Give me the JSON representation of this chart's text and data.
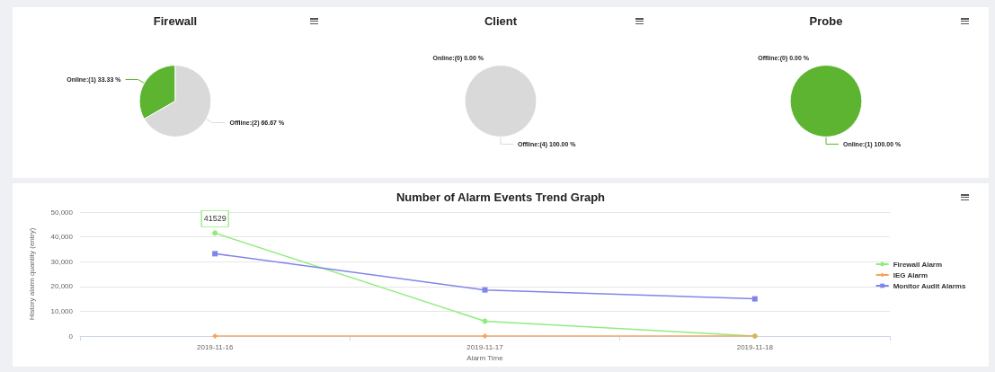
{
  "chart_data": [
    {
      "type": "pie",
      "title": "Firewall",
      "categories": [
        "Online",
        "Offline"
      ],
      "values": [
        33.33,
        66.67
      ],
      "colors": [
        "#5db431",
        "#d9d9d9"
      ],
      "value_labels": [
        ":(1) 33.33 %",
        ":(2) 66.67 %"
      ]
    },
    {
      "type": "pie",
      "title": "Client",
      "categories": [
        "Online",
        "Offline"
      ],
      "values": [
        0,
        100
      ],
      "colors": [
        "#5db431",
        "#d9d9d9"
      ],
      "value_labels": [
        ":(0) 0.00 %",
        ":(4) 100.00 %"
      ]
    },
    {
      "type": "pie",
      "title": "Probe",
      "categories": [
        "Offline",
        "Online"
      ],
      "values": [
        0,
        100
      ],
      "colors": [
        "#d9d9d9",
        "#5db431"
      ],
      "value_labels": [
        ":(0) 0.00 %",
        ":(1) 100.00 %"
      ]
    },
    {
      "type": "line",
      "title": "Number of Alarm Events Trend Graph",
      "xlabel": "Alarm Time",
      "ylabel": "History alarm quantity (entry)",
      "categories": [
        "2019-11-16",
        "2019-11-17",
        "2019-11-18"
      ],
      "series": [
        {
          "name": "Firewall Alarm",
          "color": "#90ed7d",
          "marker": "circle",
          "values": [
            41529,
            6000,
            0
          ]
        },
        {
          "name": "IEG Alarm",
          "color": "#f7a35c",
          "marker": "diamond",
          "values": [
            0,
            0,
            0
          ]
        },
        {
          "name": "Monitor Audit Alarms",
          "color": "#8085e9",
          "marker": "square",
          "values": [
            33200,
            18600,
            15000
          ]
        }
      ],
      "ylim": [
        0,
        50000
      ],
      "yticks": [
        0,
        {
          "value": 10000,
          "label": "10,000"
        },
        {
          "value": 20000,
          "label": "20,000"
        },
        {
          "value": 30000,
          "label": "30,000"
        },
        {
          "value": 40000,
          "label": "40,000"
        },
        {
          "value": 50000,
          "label": "50,000"
        }
      ],
      "grid": "y",
      "legend": "right",
      "annotations": [
        {
          "text": "41529",
          "x": "2019-11-16",
          "y": 41529
        }
      ]
    }
  ]
}
